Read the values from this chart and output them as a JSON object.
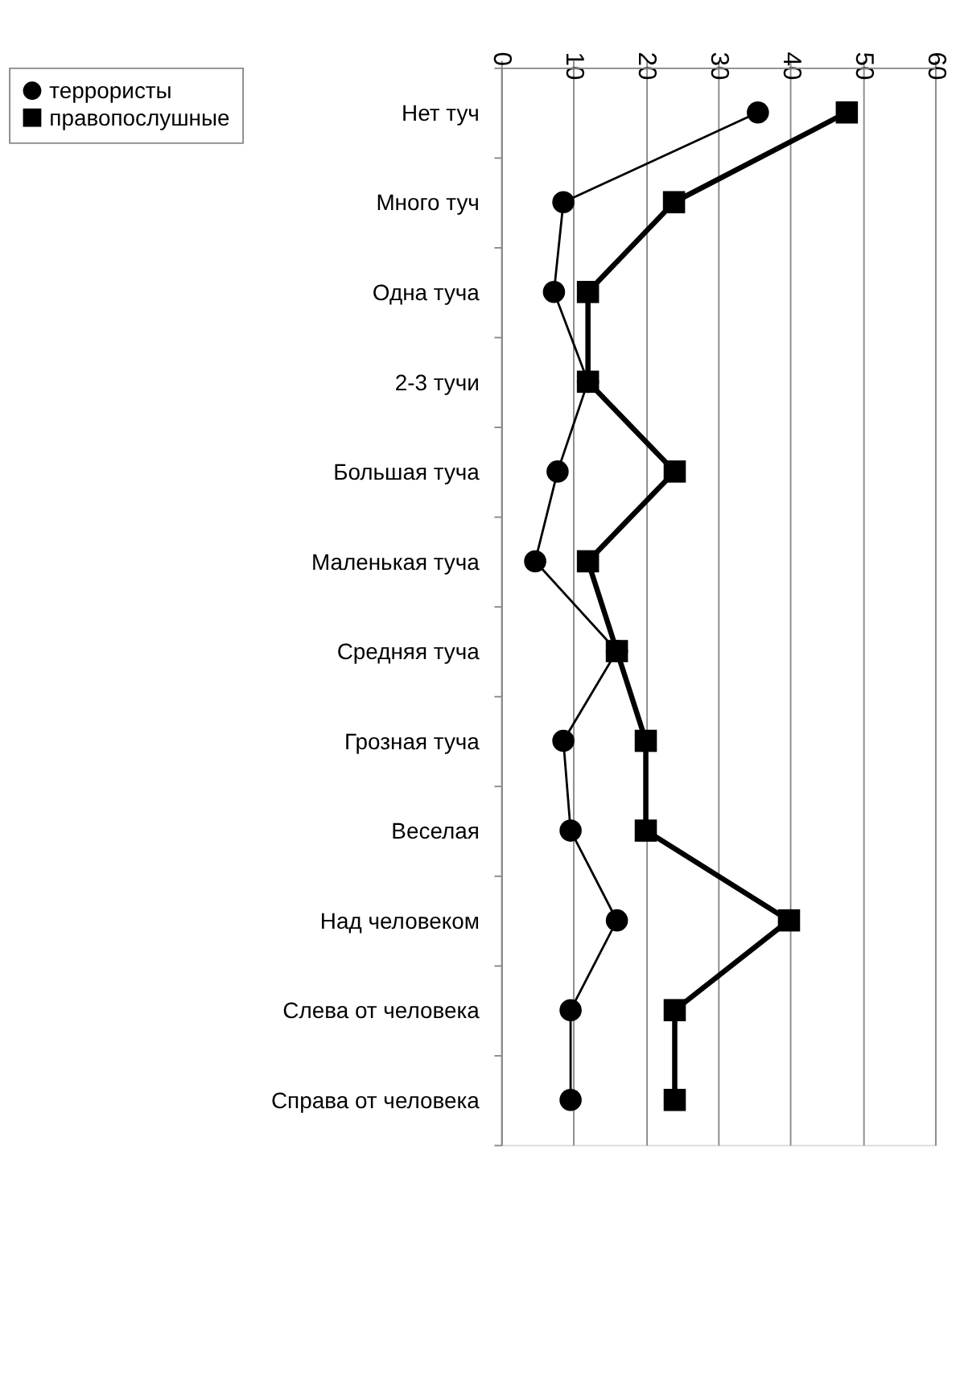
{
  "chart_data": {
    "type": "line",
    "orientation": "horizontal",
    "categories": [
      "Нет туч",
      "Много туч",
      "Одна туча",
      "2-3 тучи",
      "Большая туча",
      "Маленькая туча",
      "Средняя туча",
      "Грозная туча",
      "Веселая",
      "Над человеком",
      "Слева от человека",
      "Справа от человека"
    ],
    "series": [
      {
        "name": "террористы",
        "color": "#000000",
        "marker": "circle",
        "values": [
          35.5,
          8.6,
          7.3,
          12,
          7.8,
          4.7,
          16,
          8.6,
          9.6,
          16,
          9.6,
          9.6
        ]
      },
      {
        "name": "правопослушные",
        "color": "#000000",
        "marker": "square",
        "values": [
          47.8,
          23.9,
          12,
          12,
          24,
          12,
          16,
          20,
          20,
          39.8,
          24,
          24
        ]
      }
    ],
    "xlim": [
      0,
      60
    ],
    "xticks": [
      0,
      10,
      20,
      30,
      40,
      50,
      60
    ],
    "grid": "x",
    "legend": "left"
  }
}
